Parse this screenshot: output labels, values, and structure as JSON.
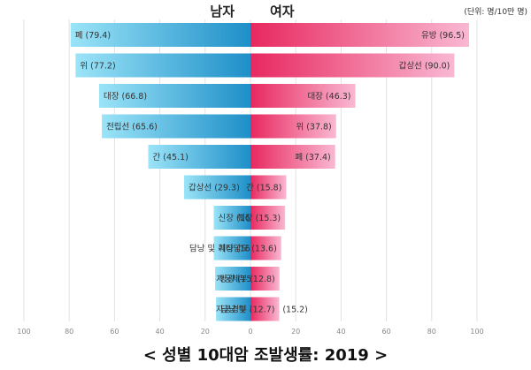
{
  "chart_data": {
    "type": "bar",
    "orientation": "horizontal-butterfly",
    "title": "< 성별 10대암 조발생률: 2019 >",
    "unit_note": "(단위: 명/10만 명)",
    "left_series": {
      "name": "남자",
      "color_start": "#9be4f8",
      "color_end": "#1e8fc8",
      "items": [
        {
          "label": "폐 (79.4)",
          "value": 79.4
        },
        {
          "label": "위 (77.2)",
          "value": 77.2
        },
        {
          "label": "대장 (66.8)",
          "value": 66.8
        },
        {
          "label": "전립선 (65.6)",
          "value": 65.6
        },
        {
          "label": "간 (45.1)",
          "value": 45.1
        },
        {
          "label": "갑상선 (29.3)",
          "value": 29.3
        },
        {
          "label": "신장 (16.2)",
          "value": 16.2
        },
        {
          "label": "췌장 (16.2)",
          "value": 16.2
        },
        {
          "label": "방광 (15.6)",
          "value": 15.6
        },
        {
          "label": "담낭 및 기타담도 (15.2)",
          "value": 15.2
        }
      ]
    },
    "right_series": {
      "name": "여자",
      "color_start": "#e8285f",
      "color_end": "#f9b8d2",
      "items": [
        {
          "label": "유방 (96.5)",
          "value": 96.5
        },
        {
          "label": "갑상선 (90.0)",
          "value": 90.0
        },
        {
          "label": "대장 (46.3)",
          "value": 46.3
        },
        {
          "label": "위 (37.8)",
          "value": 37.8
        },
        {
          "label": "폐 (37.4)",
          "value": 37.4
        },
        {
          "label": "간 (15.8)",
          "value": 15.8
        },
        {
          "label": "췌장 (15.3)",
          "value": 15.3
        },
        {
          "label": "담낭 및 기타담도 (13.6)",
          "value": 13.6
        },
        {
          "label": "자궁체부 (12.8)",
          "value": 12.8
        },
        {
          "label": "자궁경부 (12.7)",
          "value": 12.7
        }
      ]
    },
    "x_ticks": [
      "100",
      "80",
      "60",
      "40",
      "20",
      "0",
      "20",
      "40",
      "60",
      "80",
      "100"
    ],
    "xlim": [
      -110,
      110
    ],
    "grid": true
  }
}
